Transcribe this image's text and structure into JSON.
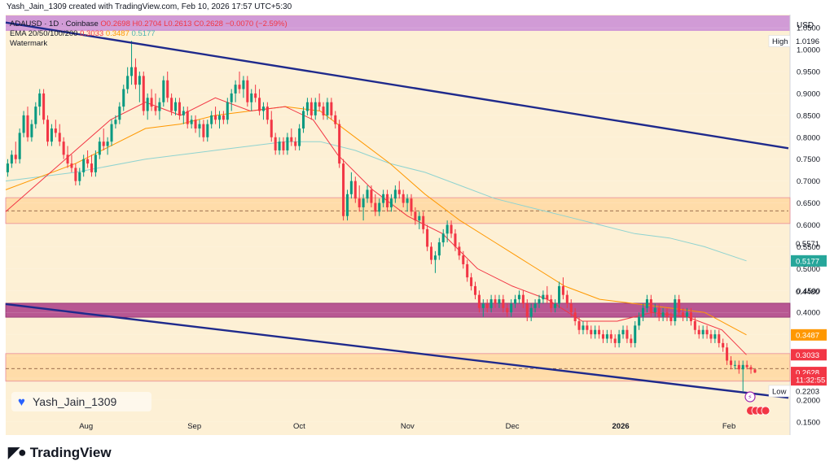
{
  "header": {
    "text": "Yash_Jain_1309 created with TradingView.com, Feb 10, 2026 17:57 UTC+5:30"
  },
  "legend": {
    "symbol_line": "ADAUSD · 1D · Coinbase",
    "o": "O0.2698",
    "h": "H0.2704",
    "l": "L0.2613",
    "c": "C0.2628",
    "chg": "−0.0070 (−2.59%)",
    "ema_label": "EMA 20/50/100/200",
    "ema20": "0.3033",
    "ema50": "0.3487",
    "ema100": "0.5177",
    "watermark": "Watermark"
  },
  "watermark_chip": {
    "text": "Yash_Jain_1309"
  },
  "brand": {
    "text": "TradingView"
  },
  "colors": {
    "bg": "#fdf0d5",
    "up": "#089981",
    "down": "#f23645",
    "channel": "#1f2a8c",
    "ema20": "#f23645",
    "ema50": "#ff9800",
    "ema100": "#8fd3d0",
    "zone_orange": "#ffd59a",
    "zone_purple": "#b24a8c",
    "banner": "#d19bd6"
  },
  "chart_data": {
    "type": "candlestick",
    "currency": "USD",
    "ylim": [
      0.12,
      1.08
    ],
    "y_ticks": [
      "1.0500",
      "1.0000",
      "0.9500",
      "0.9000",
      "0.8500",
      "0.8000",
      "0.7500",
      "0.7000",
      "0.6500",
      "0.6000",
      "0.5500",
      "0.5000",
      "0.4500",
      "0.4000",
      "0.3500",
      "0.3000",
      "0.2500",
      "0.2000",
      "0.1500"
    ],
    "x_ticks": [
      {
        "label": "Aug",
        "t": 23
      },
      {
        "label": "Sep",
        "t": 54
      },
      {
        "label": "Oct",
        "t": 84
      },
      {
        "label": "Nov",
        "t": 115
      },
      {
        "label": "Dec",
        "t": 145
      },
      {
        "label": "2026",
        "t": 176
      },
      {
        "label": "Feb",
        "t": 207
      }
    ],
    "t_range": [
      0,
      224
    ],
    "price_labels": [
      {
        "text": "High",
        "value": "1.0196",
        "y": 1.0196,
        "style": "plain"
      },
      {
        "text": "",
        "value": "0.5571",
        "y": 0.5571,
        "style": "plain"
      },
      {
        "text": "",
        "value": "0.5177",
        "y": 0.5177,
        "style": "teal"
      },
      {
        "text": "",
        "value": "0.4480",
        "y": 0.448,
        "style": "plain"
      },
      {
        "text": "",
        "value": "0.3487",
        "y": 0.3487,
        "style": "orange"
      },
      {
        "text": "",
        "value": "0.3033",
        "y": 0.3033,
        "style": "red"
      },
      {
        "text": "",
        "value": "0.2628",
        "y": 0.2628,
        "style": "red"
      },
      {
        "text": "",
        "value": "11:32:55",
        "y": 0.246,
        "style": "red"
      },
      {
        "text": "Low",
        "value": "0.2203",
        "y": 0.2203,
        "style": "plain"
      }
    ],
    "zones": [
      {
        "name": "upper-demand-zone",
        "y1": 0.603,
        "y2": 0.662,
        "color": "orange"
      },
      {
        "name": "mid-supply-zone",
        "y1": 0.389,
        "y2": 0.421,
        "color": "purple"
      },
      {
        "name": "lower-demand-zone",
        "y1": 0.243,
        "y2": 0.306,
        "color": "orange"
      }
    ],
    "channel_lines": [
      {
        "name": "upper-channel",
        "p1": [
          0,
          1.062
        ],
        "p2": [
          224,
          0.775
        ]
      },
      {
        "name": "lower-channel",
        "p1": [
          0,
          0.419
        ],
        "p2": [
          224,
          0.205
        ]
      }
    ],
    "dashed_price": 0.2718,
    "candles": [
      [
        0.72,
        0.75,
        0.71,
        0.74
      ],
      [
        0.74,
        0.77,
        0.73,
        0.76
      ],
      [
        0.76,
        0.79,
        0.74,
        0.75
      ],
      [
        0.75,
        0.82,
        0.74,
        0.81
      ],
      [
        0.81,
        0.86,
        0.8,
        0.85
      ],
      [
        0.85,
        0.87,
        0.79,
        0.8
      ],
      [
        0.8,
        0.84,
        0.79,
        0.83
      ],
      [
        0.83,
        0.88,
        0.82,
        0.87
      ],
      [
        0.87,
        0.91,
        0.85,
        0.9
      ],
      [
        0.9,
        0.91,
        0.83,
        0.84
      ],
      [
        0.84,
        0.85,
        0.78,
        0.79
      ],
      [
        0.79,
        0.83,
        0.78,
        0.82
      ],
      [
        0.82,
        0.84,
        0.8,
        0.81
      ],
      [
        0.81,
        0.83,
        0.78,
        0.79
      ],
      [
        0.79,
        0.8,
        0.75,
        0.76
      ],
      [
        0.76,
        0.78,
        0.73,
        0.74
      ],
      [
        0.74,
        0.76,
        0.72,
        0.73
      ],
      [
        0.73,
        0.74,
        0.69,
        0.7
      ],
      [
        0.7,
        0.73,
        0.69,
        0.72
      ],
      [
        0.72,
        0.76,
        0.71,
        0.75
      ],
      [
        0.75,
        0.77,
        0.73,
        0.74
      ],
      [
        0.74,
        0.76,
        0.71,
        0.72
      ],
      [
        0.72,
        0.77,
        0.71,
        0.76
      ],
      [
        0.76,
        0.8,
        0.75,
        0.79
      ],
      [
        0.79,
        0.82,
        0.77,
        0.78
      ],
      [
        0.78,
        0.8,
        0.76,
        0.79
      ],
      [
        0.79,
        0.84,
        0.78,
        0.83
      ],
      [
        0.83,
        0.85,
        0.82,
        0.84
      ],
      [
        0.84,
        0.88,
        0.83,
        0.87
      ],
      [
        0.87,
        0.92,
        0.86,
        0.91
      ],
      [
        0.91,
        0.96,
        0.9,
        0.94
      ],
      [
        0.94,
        1.02,
        0.92,
        0.96
      ],
      [
        0.96,
        0.98,
        0.91,
        0.92
      ],
      [
        0.92,
        0.95,
        0.88,
        0.94
      ],
      [
        0.94,
        0.95,
        0.85,
        0.86
      ],
      [
        0.86,
        0.9,
        0.84,
        0.89
      ],
      [
        0.89,
        0.91,
        0.86,
        0.87
      ],
      [
        0.87,
        0.9,
        0.85,
        0.86
      ],
      [
        0.86,
        0.89,
        0.84,
        0.88
      ],
      [
        0.88,
        0.94,
        0.87,
        0.93
      ],
      [
        0.93,
        0.95,
        0.88,
        0.89
      ],
      [
        0.89,
        0.9,
        0.85,
        0.86
      ],
      [
        0.86,
        0.89,
        0.85,
        0.88
      ],
      [
        0.88,
        0.89,
        0.84,
        0.85
      ],
      [
        0.85,
        0.87,
        0.83,
        0.86
      ],
      [
        0.86,
        0.87,
        0.82,
        0.83
      ],
      [
        0.83,
        0.85,
        0.82,
        0.84
      ],
      [
        0.84,
        0.85,
        0.81,
        0.82
      ],
      [
        0.82,
        0.84,
        0.8,
        0.83
      ],
      [
        0.83,
        0.84,
        0.79,
        0.8
      ],
      [
        0.8,
        0.84,
        0.79,
        0.83
      ],
      [
        0.83,
        0.86,
        0.82,
        0.85
      ],
      [
        0.85,
        0.87,
        0.83,
        0.84
      ],
      [
        0.84,
        0.86,
        0.82,
        0.85
      ],
      [
        0.85,
        0.86,
        0.83,
        0.84
      ],
      [
        0.84,
        0.89,
        0.83,
        0.88
      ],
      [
        0.88,
        0.91,
        0.86,
        0.9
      ],
      [
        0.9,
        0.93,
        0.88,
        0.92
      ],
      [
        0.92,
        0.95,
        0.9,
        0.91
      ],
      [
        0.91,
        0.94,
        0.89,
        0.93
      ],
      [
        0.93,
        0.94,
        0.87,
        0.88
      ],
      [
        0.88,
        0.91,
        0.86,
        0.9
      ],
      [
        0.9,
        0.92,
        0.88,
        0.89
      ],
      [
        0.89,
        0.91,
        0.85,
        0.86
      ],
      [
        0.86,
        0.88,
        0.84,
        0.87
      ],
      [
        0.87,
        0.88,
        0.83,
        0.84
      ],
      [
        0.84,
        0.86,
        0.79,
        0.8
      ],
      [
        0.8,
        0.81,
        0.76,
        0.77
      ],
      [
        0.77,
        0.8,
        0.76,
        0.79
      ],
      [
        0.79,
        0.8,
        0.76,
        0.77
      ],
      [
        0.77,
        0.81,
        0.76,
        0.8
      ],
      [
        0.8,
        0.82,
        0.78,
        0.79
      ],
      [
        0.79,
        0.8,
        0.77,
        0.78
      ],
      [
        0.78,
        0.83,
        0.77,
        0.82
      ],
      [
        0.82,
        0.87,
        0.81,
        0.86
      ],
      [
        0.86,
        0.89,
        0.85,
        0.88
      ],
      [
        0.88,
        0.89,
        0.84,
        0.85
      ],
      [
        0.85,
        0.89,
        0.84,
        0.88
      ],
      [
        0.88,
        0.9,
        0.86,
        0.87
      ],
      [
        0.87,
        0.88,
        0.84,
        0.85
      ],
      [
        0.85,
        0.89,
        0.84,
        0.88
      ],
      [
        0.88,
        0.89,
        0.84,
        0.85
      ],
      [
        0.85,
        0.86,
        0.82,
        0.83
      ],
      [
        0.83,
        0.84,
        0.73,
        0.74
      ],
      [
        0.74,
        0.75,
        0.61,
        0.62
      ],
      [
        0.62,
        0.68,
        0.61,
        0.67
      ],
      [
        0.67,
        0.72,
        0.66,
        0.7
      ],
      [
        0.7,
        0.71,
        0.65,
        0.66
      ],
      [
        0.66,
        0.69,
        0.63,
        0.64
      ],
      [
        0.64,
        0.67,
        0.61,
        0.66
      ],
      [
        0.66,
        0.69,
        0.65,
        0.68
      ],
      [
        0.68,
        0.69,
        0.64,
        0.65
      ],
      [
        0.65,
        0.67,
        0.62,
        0.63
      ],
      [
        0.63,
        0.66,
        0.62,
        0.65
      ],
      [
        0.65,
        0.68,
        0.64,
        0.67
      ],
      [
        0.67,
        0.68,
        0.63,
        0.64
      ],
      [
        0.64,
        0.67,
        0.63,
        0.66
      ],
      [
        0.66,
        0.69,
        0.65,
        0.68
      ],
      [
        0.68,
        0.7,
        0.66,
        0.67
      ],
      [
        0.67,
        0.68,
        0.64,
        0.65
      ],
      [
        0.65,
        0.67,
        0.63,
        0.66
      ],
      [
        0.66,
        0.67,
        0.62,
        0.63
      ],
      [
        0.63,
        0.64,
        0.6,
        0.61
      ],
      [
        0.61,
        0.63,
        0.59,
        0.62
      ],
      [
        0.62,
        0.63,
        0.58,
        0.59
      ],
      [
        0.59,
        0.6,
        0.54,
        0.55
      ],
      [
        0.55,
        0.56,
        0.51,
        0.52
      ],
      [
        0.52,
        0.54,
        0.49,
        0.53
      ],
      [
        0.53,
        0.57,
        0.52,
        0.56
      ],
      [
        0.56,
        0.59,
        0.55,
        0.58
      ],
      [
        0.58,
        0.61,
        0.56,
        0.6
      ],
      [
        0.6,
        0.61,
        0.57,
        0.58
      ],
      [
        0.58,
        0.59,
        0.54,
        0.55
      ],
      [
        0.55,
        0.56,
        0.52,
        0.53
      ],
      [
        0.53,
        0.54,
        0.5,
        0.51
      ],
      [
        0.51,
        0.52,
        0.47,
        0.48
      ],
      [
        0.48,
        0.49,
        0.45,
        0.46
      ],
      [
        0.46,
        0.47,
        0.43,
        0.44
      ],
      [
        0.44,
        0.45,
        0.4,
        0.41
      ],
      [
        0.41,
        0.43,
        0.39,
        0.42
      ],
      [
        0.42,
        0.43,
        0.4,
        0.41
      ],
      [
        0.41,
        0.44,
        0.4,
        0.43
      ],
      [
        0.43,
        0.44,
        0.41,
        0.42
      ],
      [
        0.42,
        0.44,
        0.41,
        0.43
      ],
      [
        0.43,
        0.44,
        0.4,
        0.41
      ],
      [
        0.41,
        0.42,
        0.39,
        0.4
      ],
      [
        0.4,
        0.43,
        0.39,
        0.42
      ],
      [
        0.42,
        0.44,
        0.41,
        0.43
      ],
      [
        0.43,
        0.45,
        0.42,
        0.44
      ],
      [
        0.44,
        0.45,
        0.41,
        0.42
      ],
      [
        0.42,
        0.43,
        0.38,
        0.39
      ],
      [
        0.39,
        0.42,
        0.38,
        0.41
      ],
      [
        0.41,
        0.43,
        0.4,
        0.42
      ],
      [
        0.42,
        0.44,
        0.41,
        0.43
      ],
      [
        0.43,
        0.45,
        0.42,
        0.44
      ],
      [
        0.44,
        0.46,
        0.42,
        0.43
      ],
      [
        0.43,
        0.44,
        0.4,
        0.41
      ],
      [
        0.41,
        0.43,
        0.4,
        0.42
      ],
      [
        0.42,
        0.47,
        0.41,
        0.46
      ],
      [
        0.46,
        0.48,
        0.43,
        0.44
      ],
      [
        0.44,
        0.45,
        0.41,
        0.42
      ],
      [
        0.42,
        0.43,
        0.39,
        0.4
      ],
      [
        0.4,
        0.41,
        0.37,
        0.38
      ],
      [
        0.38,
        0.39,
        0.35,
        0.36
      ],
      [
        0.36,
        0.38,
        0.35,
        0.37
      ],
      [
        0.37,
        0.38,
        0.35,
        0.36
      ],
      [
        0.36,
        0.37,
        0.34,
        0.35
      ],
      [
        0.35,
        0.37,
        0.34,
        0.36
      ],
      [
        0.36,
        0.37,
        0.34,
        0.35
      ],
      [
        0.35,
        0.36,
        0.33,
        0.34
      ],
      [
        0.34,
        0.36,
        0.33,
        0.35
      ],
      [
        0.35,
        0.36,
        0.33,
        0.34
      ],
      [
        0.34,
        0.35,
        0.32,
        0.33
      ],
      [
        0.33,
        0.36,
        0.32,
        0.35
      ],
      [
        0.35,
        0.37,
        0.34,
        0.36
      ],
      [
        0.36,
        0.37,
        0.33,
        0.34
      ],
      [
        0.34,
        0.35,
        0.32,
        0.33
      ],
      [
        0.33,
        0.38,
        0.32,
        0.37
      ],
      [
        0.37,
        0.4,
        0.36,
        0.39
      ],
      [
        0.39,
        0.42,
        0.38,
        0.41
      ],
      [
        0.41,
        0.44,
        0.4,
        0.43
      ],
      [
        0.43,
        0.44,
        0.39,
        0.4
      ],
      [
        0.4,
        0.42,
        0.39,
        0.41
      ],
      [
        0.41,
        0.42,
        0.38,
        0.39
      ],
      [
        0.39,
        0.41,
        0.38,
        0.4
      ],
      [
        0.4,
        0.41,
        0.38,
        0.39
      ],
      [
        0.39,
        0.4,
        0.37,
        0.38
      ],
      [
        0.38,
        0.44,
        0.37,
        0.43
      ],
      [
        0.43,
        0.44,
        0.39,
        0.4
      ],
      [
        0.4,
        0.41,
        0.38,
        0.39
      ],
      [
        0.39,
        0.41,
        0.38,
        0.4
      ],
      [
        0.4,
        0.41,
        0.37,
        0.38
      ],
      [
        0.38,
        0.39,
        0.35,
        0.36
      ],
      [
        0.36,
        0.37,
        0.34,
        0.35
      ],
      [
        0.35,
        0.37,
        0.34,
        0.36
      ],
      [
        0.36,
        0.37,
        0.34,
        0.35
      ],
      [
        0.35,
        0.36,
        0.33,
        0.34
      ],
      [
        0.34,
        0.36,
        0.33,
        0.35
      ],
      [
        0.35,
        0.36,
        0.32,
        0.33
      ],
      [
        0.33,
        0.34,
        0.31,
        0.32
      ],
      [
        0.32,
        0.33,
        0.28,
        0.29
      ],
      [
        0.29,
        0.3,
        0.27,
        0.28
      ],
      [
        0.28,
        0.29,
        0.27,
        0.28
      ],
      [
        0.28,
        0.29,
        0.26,
        0.27
      ],
      [
        0.27,
        0.29,
        0.22,
        0.28
      ],
      [
        0.28,
        0.29,
        0.27,
        0.275
      ],
      [
        0.275,
        0.28,
        0.26,
        0.2698
      ],
      [
        0.2698,
        0.2704,
        0.2613,
        0.2628
      ]
    ],
    "ema20": [
      [
        0,
        0.63
      ],
      [
        10,
        0.7
      ],
      [
        20,
        0.77
      ],
      [
        30,
        0.84
      ],
      [
        40,
        0.88
      ],
      [
        50,
        0.85
      ],
      [
        60,
        0.89
      ],
      [
        70,
        0.86
      ],
      [
        80,
        0.87
      ],
      [
        88,
        0.84
      ],
      [
        95,
        0.76
      ],
      [
        105,
        0.68
      ],
      [
        115,
        0.62
      ],
      [
        125,
        0.58
      ],
      [
        135,
        0.5
      ],
      [
        145,
        0.46
      ],
      [
        155,
        0.43
      ],
      [
        165,
        0.38
      ],
      [
        175,
        0.38
      ],
      [
        185,
        0.4
      ],
      [
        195,
        0.39
      ],
      [
        205,
        0.36
      ],
      [
        212,
        0.3033
      ]
    ],
    "ema50": [
      [
        0,
        0.68
      ],
      [
        10,
        0.71
      ],
      [
        20,
        0.74
      ],
      [
        30,
        0.78
      ],
      [
        40,
        0.82
      ],
      [
        50,
        0.83
      ],
      [
        60,
        0.85
      ],
      [
        70,
        0.86
      ],
      [
        80,
        0.87
      ],
      [
        90,
        0.86
      ],
      [
        100,
        0.8
      ],
      [
        110,
        0.74
      ],
      [
        120,
        0.67
      ],
      [
        130,
        0.61
      ],
      [
        140,
        0.56
      ],
      [
        150,
        0.51
      ],
      [
        160,
        0.46
      ],
      [
        170,
        0.43
      ],
      [
        180,
        0.42
      ],
      [
        190,
        0.41
      ],
      [
        200,
        0.4
      ],
      [
        212,
        0.3487
      ]
    ],
    "ema100": [
      [
        0,
        0.7
      ],
      [
        20,
        0.72
      ],
      [
        40,
        0.75
      ],
      [
        60,
        0.77
      ],
      [
        80,
        0.79
      ],
      [
        90,
        0.79
      ],
      [
        100,
        0.77
      ],
      [
        110,
        0.74
      ],
      [
        120,
        0.72
      ],
      [
        130,
        0.69
      ],
      [
        140,
        0.66
      ],
      [
        150,
        0.64
      ],
      [
        160,
        0.62
      ],
      [
        170,
        0.6
      ],
      [
        180,
        0.58
      ],
      [
        190,
        0.57
      ],
      [
        200,
        0.55
      ],
      [
        212,
        0.5177
      ]
    ]
  }
}
